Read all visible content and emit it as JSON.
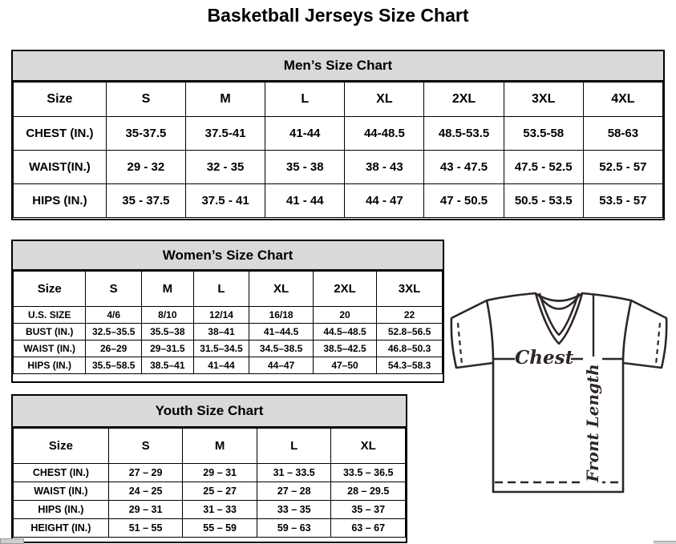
{
  "page": {
    "title": "Basketball Jerseys Size Chart"
  },
  "tables": {
    "mens": {
      "title": "Men’s Size Chart",
      "columns": [
        "Size",
        "S",
        "M",
        "L",
        "XL",
        "2XL",
        "3XL",
        "4XL"
      ],
      "rows": [
        {
          "label": "CHEST (IN.)",
          "values": [
            "35-37.5",
            "37.5-41",
            "41-44",
            "44-48.5",
            "48.5-53.5",
            "53.5-58",
            "58-63"
          ]
        },
        {
          "label": "WAIST(IN.)",
          "values": [
            "29 - 32",
            "32 - 35",
            "35 - 38",
            "38 - 43",
            "43 - 47.5",
            "47.5 - 52.5",
            "52.5 - 57"
          ]
        },
        {
          "label": "HIPS (IN.)",
          "values": [
            "35 - 37.5",
            "37.5 - 41",
            "41 - 44",
            "44 - 47",
            "47 - 50.5",
            "50.5 - 53.5",
            "53.5 - 57"
          ]
        }
      ]
    },
    "womens": {
      "title": "Women’s Size Chart",
      "columns": [
        "Size",
        "S",
        "M",
        "L",
        "XL",
        "2XL",
        "3XL"
      ],
      "rows": [
        {
          "label": "U.S. SIZE",
          "values": [
            "4/6",
            "8/10",
            "12/14",
            "16/18",
            "20",
            "22"
          ]
        },
        {
          "label": "BUST (IN.)",
          "values": [
            "32.5–35.5",
            "35.5–38",
            "38–41",
            "41–44.5",
            "44.5–48.5",
            "52.8–56.5"
          ]
        },
        {
          "label": "WAIST (IN.)",
          "values": [
            "26–29",
            "29–31.5",
            "31.5–34.5",
            "34.5–38.5",
            "38.5–42.5",
            "46.8–50.3"
          ]
        },
        {
          "label": "HIPS (IN.)",
          "values": [
            "35.5–58.5",
            "38.5–41",
            "41–44",
            "44–47",
            "47–50",
            "54.3–58.3"
          ]
        }
      ]
    },
    "youth": {
      "title": "Youth Size Chart",
      "columns": [
        "Size",
        "S",
        "M",
        "L",
        "XL"
      ],
      "rows": [
        {
          "label": "CHEST (IN.)",
          "values": [
            "27 – 29",
            "29 – 31",
            "31 – 33.5",
            "33.5 – 36.5"
          ]
        },
        {
          "label": "WAIST (IN.)",
          "values": [
            "24 – 25",
            "25 – 27",
            "27 – 28",
            "28 – 29.5"
          ]
        },
        {
          "label": "HIPS (IN.)",
          "values": [
            "29 – 31",
            "31 – 33",
            "33 – 35",
            "35 – 37"
          ]
        },
        {
          "label": "HEIGHT (IN.)",
          "values": [
            "51 – 55",
            "55 – 59",
            "59 – 63",
            "63 – 67"
          ]
        }
      ]
    }
  },
  "diagram": {
    "chest_label": "Chest",
    "front_length_label": "Front Length"
  },
  "colors": {
    "band_bg": "#d9d9d9",
    "table_border": "#000000",
    "jersey_line": "#2f2724"
  }
}
